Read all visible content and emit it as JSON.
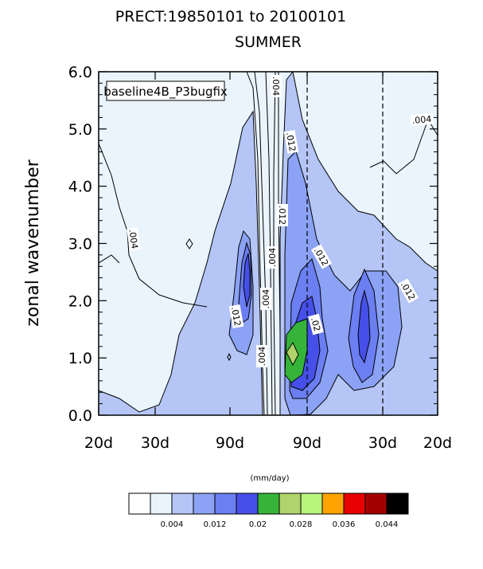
{
  "chart_data": {
    "type": "heatmap",
    "title_line1": "PRECT:19850101 to 20100101",
    "title_line2": "SUMMER",
    "ylabel": "zonal wavenumber",
    "case_label": "baseline4B_P3bugfix",
    "units": "(mm/day)",
    "x_tick_labels": [
      "20d",
      "30d",
      "90d",
      "90d",
      "30d",
      "20d"
    ],
    "y_tick_labels": [
      "0.0",
      "1.0",
      "2.0",
      "3.0",
      "4.0",
      "5.0",
      "6.0"
    ],
    "ylim": [
      0,
      6
    ],
    "vertical_dashed_lines_at": [
      "90d",
      "30d"
    ],
    "contour_labels": [
      ".004",
      ".012",
      ".012",
      ".004",
      ".004",
      ".004",
      ".012",
      ".004",
      ".004",
      ".012",
      ".02",
      ".012"
    ],
    "colorbar": {
      "colors": [
        "#ffffff",
        "#eaf4fd",
        "#b4c5f6",
        "#8ba2f5",
        "#6b7ef2",
        "#4650e8",
        "#36b43a",
        "#b0d36c",
        "#b8f57c",
        "#ffa300",
        "#e60000",
        "#a30000",
        "#000000"
      ],
      "tick_labels": [
        "0.004",
        "0.012",
        "0.02",
        "0.028",
        "0.036",
        "0.044"
      ]
    }
  }
}
